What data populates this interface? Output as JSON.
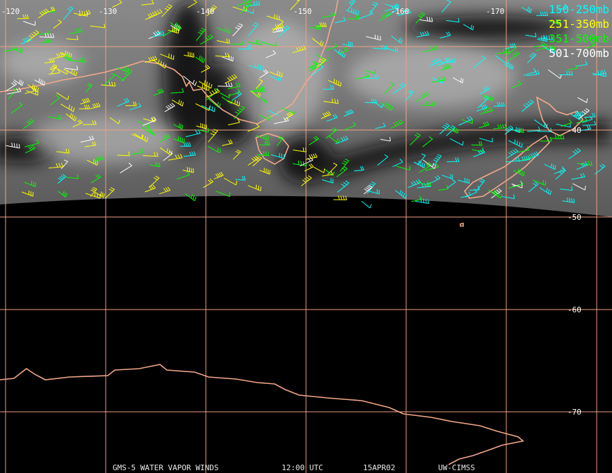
{
  "map": {
    "longitude_labels": [
      "-120",
      "-130",
      "-140",
      "-150",
      "-160",
      "-170"
    ],
    "latitude_labels": [
      "-40",
      "-50",
      "-60",
      "-70"
    ],
    "legend": [
      {
        "label": "150-250mb",
        "color": "#00ffff"
      },
      {
        "label": "251-350mb",
        "color": "#ffff00"
      },
      {
        "label": "351-500mb",
        "color": "#00ff00"
      },
      {
        "label": "501-700mb",
        "color": "#ffffff"
      }
    ],
    "footer": [
      "GMS-5 WATER VAPOR WINDS",
      "12:00 UTC",
      "15APR02",
      "UW-CIMSS"
    ]
  }
}
